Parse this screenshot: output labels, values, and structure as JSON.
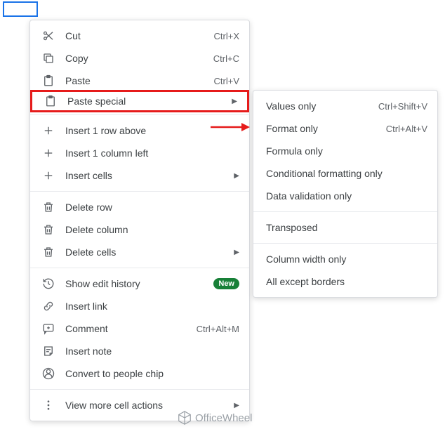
{
  "highlight_color": "#e61b1b",
  "arrow_color": "#e61b1b",
  "badge_color": "#188038",
  "cell_border_color": "#1a73e8",
  "main_menu": {
    "groups": [
      [
        {
          "icon": "cut",
          "label": "Cut",
          "shortcut": "Ctrl+X"
        },
        {
          "icon": "copy",
          "label": "Copy",
          "shortcut": "Ctrl+C"
        },
        {
          "icon": "paste",
          "label": "Paste",
          "shortcut": "Ctrl+V"
        },
        {
          "icon": "paste-special",
          "label": "Paste special",
          "submenu": true,
          "highlight": true
        }
      ],
      [
        {
          "icon": "plus",
          "label": "Insert 1 row above"
        },
        {
          "icon": "plus",
          "label": "Insert 1 column left"
        },
        {
          "icon": "plus",
          "label": "Insert cells",
          "submenu": true
        }
      ],
      [
        {
          "icon": "trash",
          "label": "Delete row"
        },
        {
          "icon": "trash",
          "label": "Delete column"
        },
        {
          "icon": "trash",
          "label": "Delete cells",
          "submenu": true
        }
      ],
      [
        {
          "icon": "history",
          "label": "Show edit history",
          "badge": "New"
        },
        {
          "icon": "link",
          "label": "Insert link"
        },
        {
          "icon": "comment",
          "label": "Comment",
          "shortcut": "Ctrl+Alt+M"
        },
        {
          "icon": "note",
          "label": "Insert note"
        },
        {
          "icon": "people",
          "label": "Convert to people chip"
        }
      ],
      [
        {
          "icon": "more",
          "label": "View more cell actions",
          "submenu": true
        }
      ]
    ]
  },
  "sub_menu": {
    "groups": [
      [
        {
          "label": "Values only",
          "shortcut": "Ctrl+Shift+V"
        },
        {
          "label": "Format only",
          "shortcut": "Ctrl+Alt+V"
        },
        {
          "label": "Formula only"
        },
        {
          "label": "Conditional formatting only"
        },
        {
          "label": "Data validation only"
        }
      ],
      [
        {
          "label": "Transposed"
        }
      ],
      [
        {
          "label": "Column width only"
        },
        {
          "label": "All except borders"
        }
      ]
    ]
  },
  "watermark": "OfficeWheel"
}
